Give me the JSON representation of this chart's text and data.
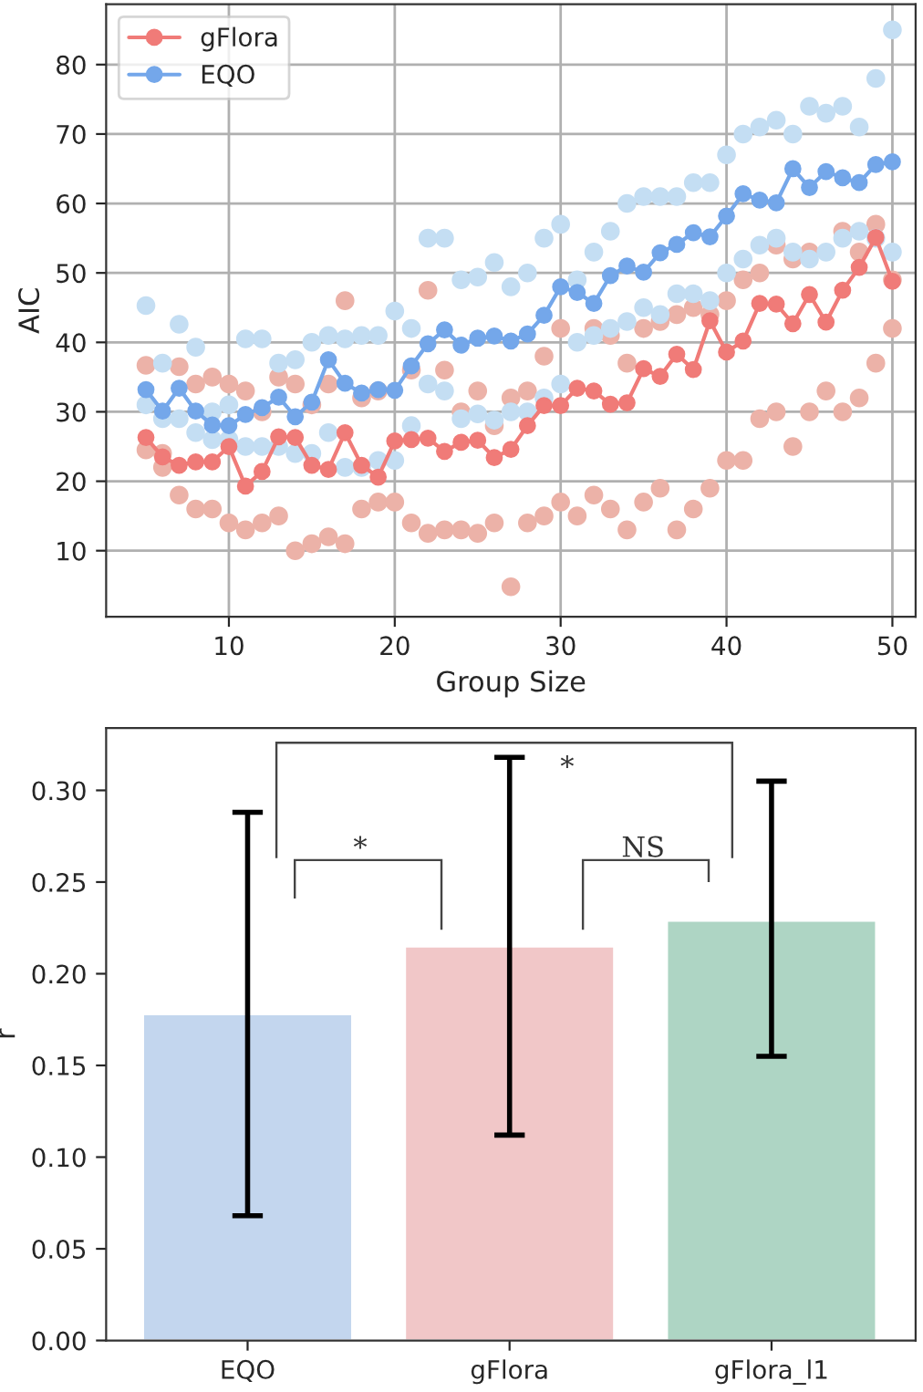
{
  "chart_data": [
    {
      "type": "line",
      "xlabel": "Group Size",
      "ylabel": "AIC",
      "xlim": [
        2.6,
        51.4
      ],
      "ylim": [
        0.5,
        88.7
      ],
      "xticks": [
        10,
        20,
        30,
        40,
        50
      ],
      "yticks": [
        10,
        20,
        30,
        40,
        50,
        60,
        70,
        80
      ],
      "grid": true,
      "legend": "top left",
      "marker": "circle",
      "line_style": "solid",
      "series": [
        {
          "type": "scatter",
          "color": "#ecb2a8",
          "x": [
            5,
            6,
            7,
            8,
            9,
            10,
            11,
            12,
            13,
            14,
            15,
            16,
            17,
            18,
            19,
            20,
            21,
            22,
            23,
            24,
            25,
            26,
            27,
            28,
            29,
            30,
            31,
            32,
            33,
            34,
            35,
            36,
            37,
            38,
            39,
            40,
            41,
            42,
            43,
            44,
            45,
            46,
            47,
            48,
            49,
            50,
            5,
            6,
            7,
            8,
            9,
            10,
            11,
            12,
            13,
            14,
            15,
            16,
            17,
            18,
            19,
            20,
            21,
            22,
            23,
            24,
            25,
            26,
            27,
            28,
            29,
            30,
            31,
            32,
            33,
            34,
            35,
            36,
            37,
            38,
            39,
            40,
            41,
            42,
            43,
            44,
            45,
            46,
            47,
            48,
            49,
            50
          ],
          "values": [
            24.5,
            22,
            18,
            16,
            16,
            14,
            13,
            14,
            15,
            10,
            11,
            12,
            11,
            16,
            17,
            17,
            14,
            12.5,
            13,
            13,
            12.5,
            14,
            4.8,
            14,
            15,
            17,
            15,
            18,
            16,
            13,
            17,
            19,
            13,
            16,
            19,
            23,
            23,
            29,
            30,
            25,
            30,
            33,
            30,
            32,
            37,
            42,
            36.7,
            24,
            36.5,
            34,
            35,
            34,
            33,
            30,
            35,
            34,
            31,
            34,
            46,
            32,
            33,
            null,
            36,
            47.5,
            36,
            30,
            33,
            28,
            32,
            33,
            38,
            42,
            null,
            42,
            41,
            37,
            42,
            43,
            44,
            45,
            44,
            46,
            49,
            50,
            54,
            52,
            53,
            null,
            56,
            53,
            57,
            49
          ]
        },
        {
          "type": "scatter",
          "color": "#c4def3",
          "x": [
            5,
            6,
            7,
            8,
            9,
            10,
            11,
            12,
            13,
            14,
            15,
            16,
            17,
            18,
            19,
            20,
            21,
            22,
            23,
            24,
            25,
            26,
            27,
            28,
            29,
            30,
            31,
            32,
            33,
            34,
            35,
            36,
            37,
            38,
            39,
            40,
            41,
            42,
            43,
            44,
            45,
            46,
            47,
            48,
            49,
            50,
            5,
            6,
            7,
            8,
            9,
            10,
            11,
            12,
            13,
            14,
            15,
            16,
            17,
            18,
            19,
            20,
            21,
            22,
            23,
            24,
            25,
            26,
            27,
            28,
            29,
            30,
            31,
            32,
            33,
            34,
            35,
            36,
            37,
            38,
            39,
            40,
            41,
            42,
            43,
            44,
            45,
            46,
            47,
            48,
            49,
            50
          ],
          "values": [
            31,
            29,
            29,
            27,
            26,
            26,
            25,
            25,
            25,
            24,
            24,
            27,
            22,
            22,
            23,
            23,
            28,
            34,
            33,
            29,
            29.7,
            28.8,
            30,
            30,
            32,
            34,
            40,
            41,
            42,
            43,
            45,
            44,
            47,
            47,
            46,
            50,
            52,
            54,
            55,
            53,
            52,
            53,
            55,
            56,
            55,
            53,
            45.3,
            37,
            42.6,
            39.3,
            30,
            31,
            40.5,
            40.5,
            37,
            37.5,
            40,
            41,
            40.5,
            41,
            41,
            44.5,
            42,
            55,
            55,
            49,
            49.4,
            51.5,
            48,
            50,
            55,
            57,
            49,
            53,
            56,
            60,
            61,
            61,
            61,
            63,
            63,
            67,
            70,
            71,
            72,
            70,
            74,
            73,
            74,
            71,
            78,
            85
          ]
        },
        {
          "name": "gFlora",
          "color": "#f07b78",
          "x": [
            5,
            6,
            7,
            8,
            9,
            10,
            11,
            12,
            13,
            14,
            15,
            16,
            17,
            18,
            19,
            20,
            21,
            22,
            23,
            24,
            25,
            26,
            27,
            28,
            29,
            30,
            31,
            32,
            33,
            34,
            35,
            36,
            37,
            38,
            39,
            40,
            41,
            42,
            43,
            44,
            45,
            46,
            47,
            48,
            49,
            50
          ],
          "values": [
            26.3,
            23.5,
            22.3,
            22.8,
            22.8,
            25,
            19.3,
            21.4,
            26.4,
            26.3,
            22.3,
            21.7,
            27,
            22.3,
            20.6,
            25.8,
            26,
            26.2,
            24.3,
            25.6,
            25.9,
            23.4,
            24.6,
            28,
            30.9,
            30.9,
            33.4,
            33,
            31.1,
            31.3,
            36.2,
            35.1,
            38.3,
            36.1,
            43.1,
            38.6,
            40.2,
            45.6,
            45.5,
            42.7,
            46.9,
            42.9,
            47.5,
            50.8,
            55.1,
            48.8
          ]
        },
        {
          "name": "EQO",
          "color": "#74a7ea",
          "x": [
            5,
            6,
            7,
            8,
            9,
            10,
            11,
            12,
            13,
            14,
            15,
            16,
            17,
            18,
            19,
            20,
            21,
            22,
            23,
            24,
            25,
            26,
            27,
            28,
            29,
            30,
            31,
            32,
            33,
            34,
            35,
            36,
            37,
            38,
            39,
            40,
            41,
            42,
            43,
            44,
            45,
            46,
            47,
            48,
            49,
            50
          ],
          "values": [
            33.2,
            30.1,
            33.4,
            30.1,
            28.1,
            28,
            29.6,
            30.6,
            32.1,
            29.3,
            31.4,
            37.5,
            34.1,
            32.7,
            33.2,
            33.1,
            36.6,
            39.8,
            41.8,
            39.6,
            40.6,
            40.9,
            40.2,
            41.2,
            43.9,
            48,
            47.2,
            45.6,
            49.6,
            51,
            50.1,
            52.9,
            54.1,
            55.8,
            55.2,
            58.2,
            61.4,
            60.5,
            60.1,
            65,
            62.3,
            64.6,
            63.7,
            63,
            65.6,
            66
          ]
        }
      ]
    },
    {
      "type": "bar",
      "ylabel": "r",
      "categories": [
        "EQO",
        "gFlora",
        "gFlora_l1"
      ],
      "values": [
        0.178,
        0.215,
        0.229
      ],
      "colors": [
        "#bcd5f5",
        "#f8c0c2",
        "#a8dcc4"
      ],
      "errors": [
        [
          0.068,
          0.288
        ],
        [
          0.112,
          0.318
        ],
        [
          0.155,
          0.305
        ]
      ],
      "ylim": [
        0,
        0.334
      ],
      "yticks": [
        {
          "value": 0,
          "label": "0.00"
        },
        {
          "value": 0.05,
          "label": "0.05"
        },
        {
          "value": 0.1,
          "label": "0.10"
        },
        {
          "value": 0.15,
          "label": "0.15"
        },
        {
          "value": 0.2,
          "label": "0.20"
        },
        {
          "value": 0.25,
          "label": "0.25"
        },
        {
          "value": 0.3,
          "label": "0.30"
        }
      ],
      "annotations": [
        "*",
        "*",
        "NS"
      ]
    }
  ]
}
